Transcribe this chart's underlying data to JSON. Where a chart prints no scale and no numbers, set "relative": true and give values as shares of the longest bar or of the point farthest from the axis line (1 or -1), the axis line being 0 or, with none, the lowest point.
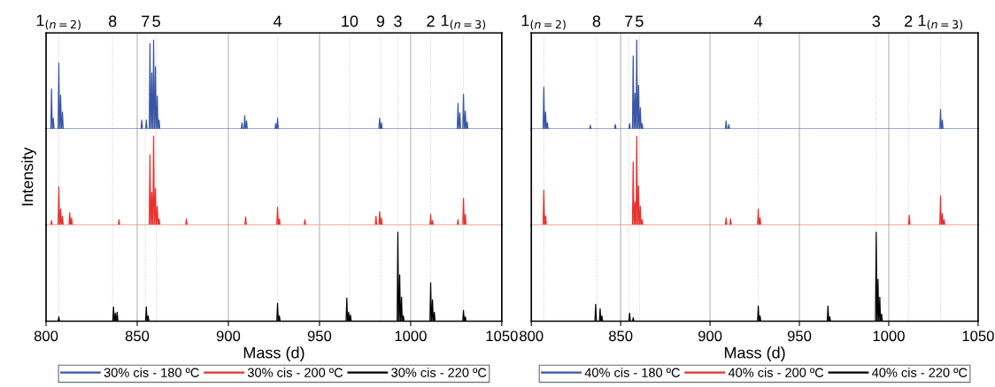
{
  "chart_data": [
    {
      "type": "line",
      "relative": true,
      "xlim": [
        800,
        1050
      ],
      "xticks": [
        800,
        850,
        900,
        950,
        1000,
        1050
      ],
      "tick_labels": false,
      "grid": "x",
      "annotations": [
        "1$_{(n=2)}$",
        "8",
        "7",
        "5",
        "4",
        "10",
        "9",
        "3",
        "2",
        "1$_{(n=3)}$"
      ],
      "ref_lines": [
        {
          "axis": "x",
          "value": 807,
          "color": "#c8c8c8",
          "line_style": "dotted"
        },
        {
          "axis": "x",
          "value": 836.5,
          "color": "#c8c8c8",
          "line_style": "dotted"
        },
        {
          "axis": "x",
          "value": 854.5,
          "color": "#c8c8c8",
          "line_style": "dotted"
        },
        {
          "axis": "x",
          "value": 860.5,
          "color": "#c8c8c8",
          "line_style": "dotted"
        },
        {
          "axis": "x",
          "value": 927,
          "color": "#c8c8c8",
          "line_style": "dotted"
        },
        {
          "axis": "x",
          "value": 966.5,
          "color": "#c8c8c8",
          "line_style": "dotted"
        },
        {
          "axis": "x",
          "value": 983.5,
          "color": "#c8c8c8",
          "line_style": "dotted"
        },
        {
          "axis": "x",
          "value": 993,
          "color": "#c8c8c8",
          "line_style": "dotted"
        },
        {
          "axis": "x",
          "value": 1011,
          "color": "#c8c8c8",
          "line_style": "dotted"
        },
        {
          "axis": "x",
          "value": 1029,
          "color": "#c8c8c8",
          "line_style": "dotted"
        }
      ],
      "series": [
        {
          "name": "30% cis - 180 ºC",
          "color": "#3a55a5",
          "x": [
            800,
            802.6,
            803,
            803.4,
            803.6,
            804,
            804.4,
            806.6,
            807,
            807.4,
            807.6,
            808,
            808.4,
            808.6,
            809,
            809.4,
            852.1,
            852.5,
            852.9,
            854.6,
            855,
            855.4,
            856.6,
            857,
            857.4,
            857.6,
            858,
            858.4,
            858.6,
            859,
            859.4,
            859.6,
            860,
            860.4,
            860.6,
            861,
            861.4,
            861.6,
            862,
            862.4,
            907.1,
            907.5,
            907.9,
            908.6,
            909,
            909.4,
            909.6,
            910,
            910.4,
            925.6,
            926,
            926.4,
            926.6,
            927,
            927.4,
            982.6,
            983,
            983.4,
            983.6,
            984,
            984.4,
            1025.6,
            1026,
            1026.4,
            1026.6,
            1027,
            1027.4,
            1028.6,
            1029,
            1029.4,
            1029.6,
            1030,
            1030.4,
            1030.6,
            1031,
            1031.4,
            1050
          ],
          "values": [
            0,
            0,
            0.45,
            0,
            0,
            0.12,
            0,
            0,
            0.74,
            0,
            0,
            0.38,
            0,
            0,
            0.19,
            0,
            0,
            0.1,
            0,
            0,
            0.1,
            0,
            0,
            0.96,
            0,
            0,
            0.63,
            0,
            0,
            1,
            0,
            0,
            0.7,
            0,
            0,
            0.37,
            0,
            0,
            0.1,
            0,
            0,
            0.07,
            0,
            0,
            0.15,
            0,
            0,
            0.09,
            0,
            0,
            0.06,
            0,
            0,
            0.12,
            0,
            0,
            0.12,
            0,
            0,
            0.07,
            0,
            0,
            0.29,
            0,
            0,
            0.18,
            0,
            0,
            0.39,
            0,
            0,
            0.2,
            0,
            0,
            0.08,
            0,
            0
          ]
        }
      ]
    },
    {
      "type": "line",
      "relative": true,
      "xlim": [
        800,
        1050
      ],
      "xticks": [
        800,
        850,
        900,
        950,
        1000,
        1050
      ],
      "tick_labels": false,
      "grid": "x",
      "ylabel": "Intensity",
      "ref_lines": [
        {
          "axis": "x",
          "value": 807,
          "color": "#c8c8c8",
          "line_style": "dotted"
        },
        {
          "axis": "x",
          "value": 836.5,
          "color": "#c8c8c8",
          "line_style": "dotted"
        },
        {
          "axis": "x",
          "value": 854.5,
          "color": "#c8c8c8",
          "line_style": "dotted"
        },
        {
          "axis": "x",
          "value": 860.5,
          "color": "#c8c8c8",
          "line_style": "dotted"
        },
        {
          "axis": "x",
          "value": 927,
          "color": "#c8c8c8",
          "line_style": "dotted"
        },
        {
          "axis": "x",
          "value": 966.5,
          "color": "#c8c8c8",
          "line_style": "dotted"
        },
        {
          "axis": "x",
          "value": 983.5,
          "color": "#c8c8c8",
          "line_style": "dotted"
        },
        {
          "axis": "x",
          "value": 993,
          "color": "#c8c8c8",
          "line_style": "dotted"
        },
        {
          "axis": "x",
          "value": 1011,
          "color": "#c8c8c8",
          "line_style": "dotted"
        },
        {
          "axis": "x",
          "value": 1029,
          "color": "#c8c8c8",
          "line_style": "dotted"
        }
      ],
      "series": [
        {
          "name": "30% cis - 200 ºC",
          "color": "#e8302e",
          "x": [
            800,
            802.6,
            803,
            803.4,
            806.6,
            807,
            807.4,
            807.6,
            808,
            808.4,
            808.6,
            809,
            809.4,
            812.6,
            813,
            813.4,
            813.6,
            814,
            814.4,
            839.6,
            840,
            840.4,
            856.6,
            857,
            857.4,
            857.6,
            858,
            858.4,
            858.6,
            859,
            859.4,
            859.6,
            860,
            860.4,
            860.6,
            861,
            861.4,
            861.6,
            862,
            862.4,
            876.6,
            877,
            877.4,
            909.1,
            909.5,
            909.9,
            926.6,
            927,
            927.4,
            927.6,
            928,
            928.4,
            941.6,
            942,
            942.4,
            980.6,
            981,
            981.4,
            982.6,
            983,
            983.4,
            983.6,
            984,
            984.4,
            1010.6,
            1011,
            1011.4,
            1011.6,
            1012,
            1012.4,
            1025.6,
            1026,
            1026.4,
            1028.6,
            1029,
            1029.4,
            1029.6,
            1030,
            1030.4,
            1050
          ],
          "values": [
            0,
            0,
            0.05,
            0,
            0,
            0.43,
            0,
            0,
            0.18,
            0,
            0,
            0.1,
            0,
            0,
            0.14,
            0,
            0,
            0.08,
            0,
            0,
            0.06,
            0,
            0,
            0.79,
            0,
            0,
            0.37,
            0,
            0,
            1,
            0,
            0,
            0.41,
            0,
            0,
            0.21,
            0,
            0,
            0.07,
            0,
            0,
            0.07,
            0,
            0,
            0.09,
            0,
            0,
            0.2,
            0,
            0,
            0.07,
            0,
            0,
            0.06,
            0,
            0,
            0.1,
            0,
            0,
            0.15,
            0,
            0,
            0.08,
            0,
            0,
            0.12,
            0,
            0,
            0.05,
            0,
            0,
            0.06,
            0,
            0,
            0.3,
            0,
            0,
            0.12,
            0,
            0
          ]
        }
      ]
    },
    {
      "type": "line",
      "relative": true,
      "xlim": [
        800,
        1050
      ],
      "xticks": [
        800,
        850,
        900,
        950,
        1000,
        1050
      ],
      "tick_labels": "x",
      "grid": "x",
      "xlabel": "Mass (d)",
      "legend": "bottom",
      "ref_lines": [
        {
          "axis": "x",
          "value": 807,
          "color": "#c8c8c8",
          "line_style": "dotted"
        },
        {
          "axis": "x",
          "value": 836.5,
          "color": "#c8c8c8",
          "line_style": "dotted"
        },
        {
          "axis": "x",
          "value": 854.5,
          "color": "#c8c8c8",
          "line_style": "dotted"
        },
        {
          "axis": "x",
          "value": 860.5,
          "color": "#c8c8c8",
          "line_style": "dotted"
        },
        {
          "axis": "x",
          "value": 927,
          "color": "#c8c8c8",
          "line_style": "dotted"
        },
        {
          "axis": "x",
          "value": 966.5,
          "color": "#c8c8c8",
          "line_style": "dotted"
        },
        {
          "axis": "x",
          "value": 983.5,
          "color": "#c8c8c8",
          "line_style": "dotted"
        },
        {
          "axis": "x",
          "value": 993,
          "color": "#c8c8c8",
          "line_style": "dotted"
        },
        {
          "axis": "x",
          "value": 1011,
          "color": "#c8c8c8",
          "line_style": "dotted"
        },
        {
          "axis": "x",
          "value": 1029,
          "color": "#c8c8c8",
          "line_style": "dotted"
        }
      ],
      "series": [
        {
          "name": "30% cis - 220 ºC",
          "color": "#000000",
          "x": [
            800,
            806.6,
            807,
            807.4,
            836.6,
            837,
            837.4,
            837.6,
            838,
            838.4,
            838.6,
            839,
            839.4,
            854.6,
            855,
            855.4,
            855.6,
            856,
            856.4,
            926.6,
            927,
            927.4,
            927.6,
            928,
            928.4,
            964.6,
            965,
            965.4,
            965.6,
            966,
            966.4,
            966.6,
            967,
            967.4,
            992.6,
            993,
            993.4,
            993.6,
            994,
            994.4,
            994.6,
            995,
            995.4,
            995.6,
            996,
            996.4,
            1010.6,
            1011,
            1011.4,
            1011.6,
            1012,
            1012.4,
            1012.6,
            1013,
            1013.4,
            1028.6,
            1029,
            1029.4,
            1029.6,
            1030,
            1030.4,
            1050
          ],
          "values": [
            0,
            0,
            0.05,
            0,
            0,
            0.16,
            0,
            0,
            0.09,
            0,
            0,
            0.1,
            0,
            0,
            0.16,
            0,
            0,
            0.06,
            0,
            0,
            0.2,
            0,
            0,
            0.06,
            0,
            0,
            0.26,
            0,
            0,
            0.1,
            0,
            0,
            0.07,
            0,
            0,
            1,
            0,
            0,
            0.52,
            0,
            0,
            0.27,
            0,
            0,
            0.06,
            0,
            0,
            0.43,
            0,
            0,
            0.24,
            0,
            0,
            0.1,
            0,
            0,
            0.12,
            0,
            0,
            0.05,
            0,
            0
          ]
        }
      ]
    },
    {
      "type": "line",
      "relative": true,
      "xlim": [
        800,
        1050
      ],
      "xticks": [
        800,
        850,
        900,
        950,
        1000,
        1050
      ],
      "tick_labels": false,
      "grid": "x",
      "annotations": [
        "1$_{(n=2)}$",
        "8",
        "7",
        "5",
        "4",
        "3",
        "2",
        "1$_{(n=3)}$"
      ],
      "ref_lines": [
        {
          "axis": "x",
          "value": 807,
          "color": "#c8c8c8",
          "line_style": "dotted"
        },
        {
          "axis": "x",
          "value": 836.5,
          "color": "#c8c8c8",
          "line_style": "dotted"
        },
        {
          "axis": "x",
          "value": 854.5,
          "color": "#c8c8c8",
          "line_style": "dotted"
        },
        {
          "axis": "x",
          "value": 860.5,
          "color": "#c8c8c8",
          "line_style": "dotted"
        },
        {
          "axis": "x",
          "value": 927,
          "color": "#c8c8c8",
          "line_style": "dotted"
        },
        {
          "axis": "x",
          "value": 993,
          "color": "#c8c8c8",
          "line_style": "dotted"
        },
        {
          "axis": "x",
          "value": 1011,
          "color": "#c8c8c8",
          "line_style": "dotted"
        },
        {
          "axis": "x",
          "value": 1029,
          "color": "#c8c8c8",
          "line_style": "dotted"
        }
      ],
      "series": [
        {
          "name": "40% cis - 180 ºC",
          "color": "#3a55a5",
          "x": [
            800,
            806.6,
            807,
            807.4,
            807.6,
            808,
            808.4,
            808.6,
            809,
            809.4,
            832.6,
            833,
            833.4,
            846.6,
            847,
            847.4,
            854.6,
            855,
            855.4,
            856.6,
            857,
            857.4,
            857.6,
            858,
            858.4,
            858.6,
            859,
            859.4,
            859.6,
            860,
            860.4,
            860.6,
            861,
            861.4,
            861.6,
            862,
            862.4,
            908.6,
            909,
            909.4,
            910.1,
            910.5,
            910.9,
            1028.6,
            1029,
            1029.4,
            1029.6,
            1030,
            1030.4,
            1050
          ],
          "values": [
            0,
            0,
            0.47,
            0,
            0,
            0.19,
            0,
            0,
            0.07,
            0,
            0,
            0.04,
            0,
            0,
            0.05,
            0,
            0,
            0.06,
            0,
            0,
            0.82,
            0,
            0,
            0.4,
            0,
            0,
            1,
            0,
            0,
            0.49,
            0,
            0,
            0.24,
            0,
            0,
            0.06,
            0,
            0,
            0.09,
            0,
            0,
            0.05,
            0,
            0,
            0.22,
            0,
            0,
            0.1,
            0,
            0
          ]
        }
      ]
    },
    {
      "type": "line",
      "relative": true,
      "xlim": [
        800,
        1050
      ],
      "xticks": [
        800,
        850,
        900,
        950,
        1000,
        1050
      ],
      "tick_labels": false,
      "grid": "x",
      "ref_lines": [
        {
          "axis": "x",
          "value": 807,
          "color": "#c8c8c8",
          "line_style": "dotted"
        },
        {
          "axis": "x",
          "value": 836.5,
          "color": "#c8c8c8",
          "line_style": "dotted"
        },
        {
          "axis": "x",
          "value": 854.5,
          "color": "#c8c8c8",
          "line_style": "dotted"
        },
        {
          "axis": "x",
          "value": 860.5,
          "color": "#c8c8c8",
          "line_style": "dotted"
        },
        {
          "axis": "x",
          "value": 927,
          "color": "#c8c8c8",
          "line_style": "dotted"
        },
        {
          "axis": "x",
          "value": 993,
          "color": "#c8c8c8",
          "line_style": "dotted"
        },
        {
          "axis": "x",
          "value": 1011,
          "color": "#c8c8c8",
          "line_style": "dotted"
        },
        {
          "axis": "x",
          "value": 1029,
          "color": "#c8c8c8",
          "line_style": "dotted"
        }
      ],
      "series": [
        {
          "name": "40% cis - 200 ºC",
          "color": "#e8302e",
          "x": [
            800,
            806.6,
            807,
            807.4,
            807.6,
            808,
            808.4,
            856.6,
            857,
            857.4,
            857.6,
            858,
            858.4,
            858.6,
            859,
            859.4,
            859.6,
            860,
            860.4,
            860.6,
            861,
            861.4,
            861.6,
            862,
            862.4,
            908.6,
            909,
            909.4,
            911.1,
            911.5,
            911.9,
            926.6,
            927,
            927.4,
            927.6,
            928,
            928.4,
            1011.1,
            1011.5,
            1011.9,
            1028.6,
            1029,
            1029.4,
            1029.6,
            1030,
            1030.4,
            1030.6,
            1031,
            1031.4,
            1050
          ],
          "values": [
            0,
            0,
            0.39,
            0,
            0,
            0.1,
            0,
            0,
            0.71,
            0,
            0,
            0.26,
            0,
            0,
            1,
            0,
            0,
            0.44,
            0,
            0,
            0.21,
            0,
            0,
            0.06,
            0,
            0,
            0.08,
            0,
            0,
            0.07,
            0,
            0,
            0.18,
            0,
            0,
            0.08,
            0,
            0,
            0.11,
            0,
            0,
            0.33,
            0,
            0,
            0.13,
            0,
            0,
            0.06,
            0,
            0
          ]
        }
      ]
    },
    {
      "type": "line",
      "relative": true,
      "xlim": [
        800,
        1050
      ],
      "xticks": [
        800,
        850,
        900,
        950,
        1000,
        1050
      ],
      "tick_labels": "x",
      "grid": "x",
      "xlabel": "Mass (d)",
      "legend": "bottom",
      "ref_lines": [
        {
          "axis": "x",
          "value": 807,
          "color": "#c8c8c8",
          "line_style": "dotted"
        },
        {
          "axis": "x",
          "value": 836.5,
          "color": "#c8c8c8",
          "line_style": "dotted"
        },
        {
          "axis": "x",
          "value": 854.5,
          "color": "#c8c8c8",
          "line_style": "dotted"
        },
        {
          "axis": "x",
          "value": 860.5,
          "color": "#c8c8c8",
          "line_style": "dotted"
        },
        {
          "axis": "x",
          "value": 927,
          "color": "#c8c8c8",
          "line_style": "dotted"
        },
        {
          "axis": "x",
          "value": 993,
          "color": "#c8c8c8",
          "line_style": "dotted"
        },
        {
          "axis": "x",
          "value": 1011,
          "color": "#c8c8c8",
          "line_style": "dotted"
        },
        {
          "axis": "x",
          "value": 1029,
          "color": "#c8c8c8",
          "line_style": "dotted"
        }
      ],
      "series": [
        {
          "name": "40% cis - 220 ºC",
          "color": "#000000",
          "x": [
            800,
            835.6,
            836,
            836.4,
            838.1,
            838.5,
            838.9,
            839.1,
            839.5,
            839.9,
            854.6,
            855,
            855.4,
            856.6,
            857,
            857.4,
            926.6,
            927,
            927.4,
            927.6,
            928,
            928.4,
            965.6,
            966,
            966.4,
            966.6,
            967,
            967.4,
            992.6,
            993,
            993.4,
            993.6,
            994,
            994.4,
            994.6,
            995,
            995.4,
            995.6,
            996,
            996.4,
            1050
          ],
          "values": [
            0,
            0,
            0.19,
            0,
            0,
            0.14,
            0,
            0,
            0.06,
            0,
            0,
            0.09,
            0,
            0,
            0.04,
            0,
            0,
            0.17,
            0,
            0,
            0.06,
            0,
            0,
            0.17,
            0,
            0,
            0.05,
            0,
            0,
            1,
            0,
            0,
            0.47,
            0,
            0,
            0.27,
            0,
            0,
            0.08,
            0,
            0
          ]
        }
      ]
    }
  ]
}
